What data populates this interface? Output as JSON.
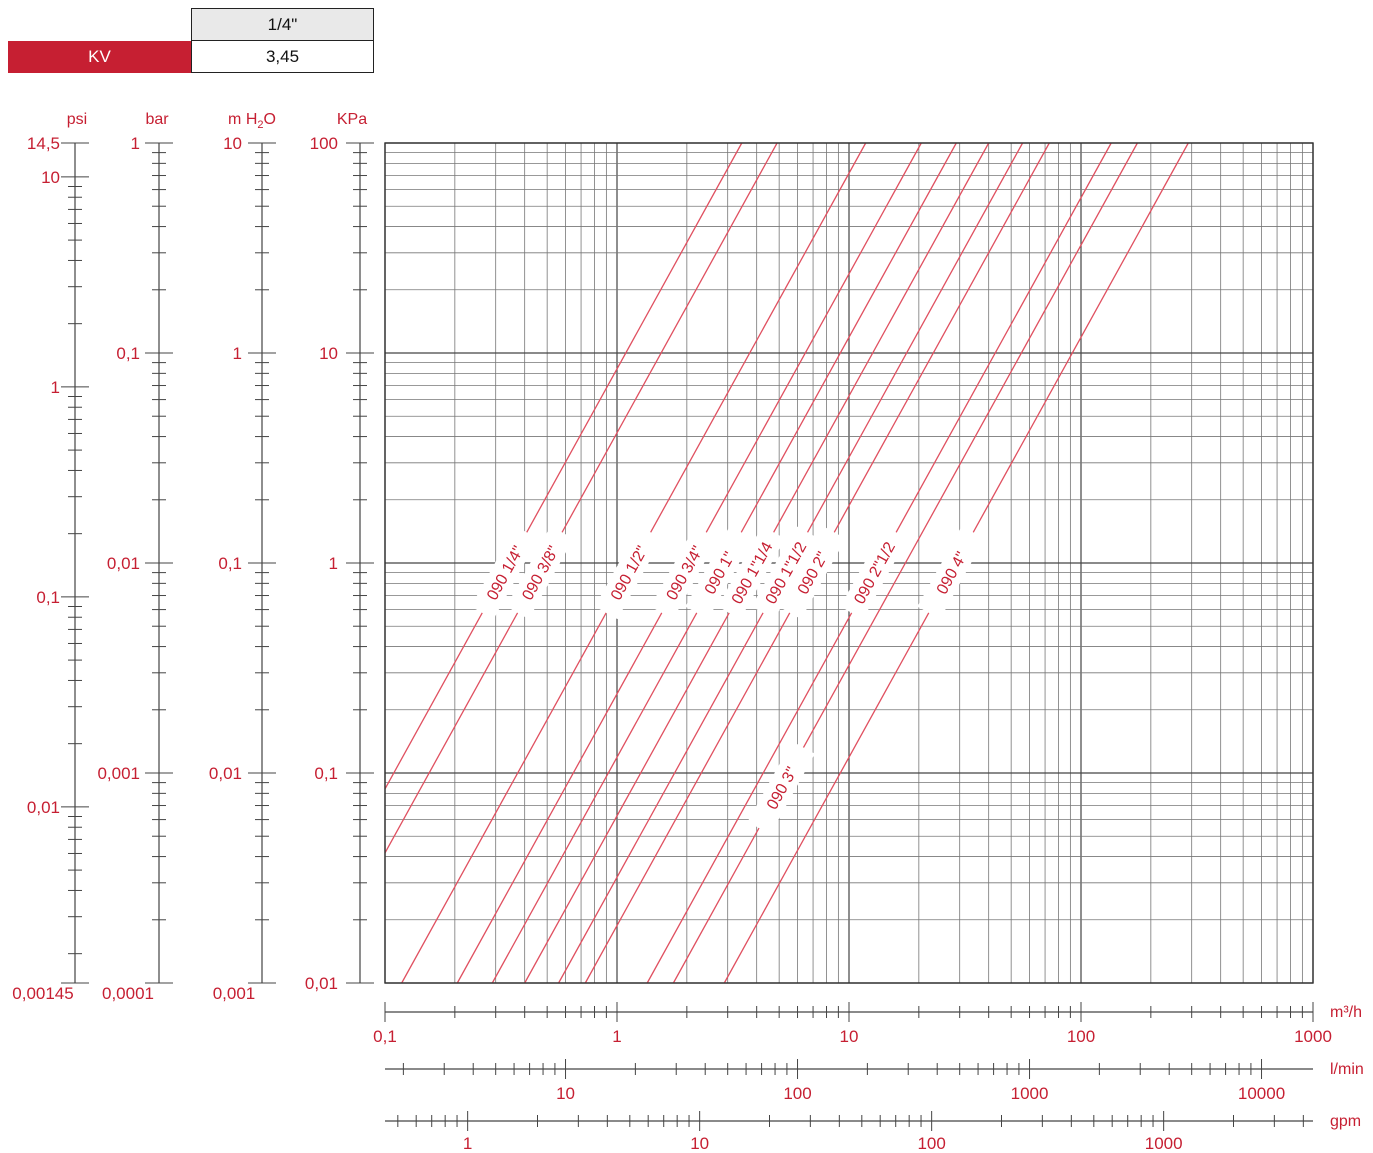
{
  "table": {
    "size": "1/4\"",
    "kv_label": "KV",
    "kv_value": "3,45"
  },
  "colors": {
    "accent": "#c61f32",
    "grid": "#555555",
    "curve": "#e05060"
  },
  "chart_data": {
    "type": "line",
    "scale": "log-log",
    "x_axis": {
      "unit": "m³/h",
      "range": [
        0.1,
        1000
      ],
      "tick_labels": [
        "0,1",
        "1",
        "10",
        "100",
        "1000"
      ]
    },
    "y_axis": {
      "unit": "KPa",
      "range": [
        0.01,
        100
      ],
      "tick_labels": [
        "100",
        "10",
        "1",
        "0,1",
        "0,01"
      ]
    },
    "secondary_x_axes": [
      {
        "unit": "l/min",
        "range_tick_labels": [
          "10",
          "100",
          "1000",
          "10000"
        ]
      },
      {
        "unit": "gpm",
        "range_tick_labels": [
          "1",
          "10",
          "100",
          "1000"
        ]
      }
    ],
    "side_scales": [
      {
        "unit": "psi",
        "tick_labels": [
          "14,5",
          "10",
          "1",
          "0,1",
          "0,01",
          "0,00145"
        ]
      },
      {
        "unit": "bar",
        "tick_labels": [
          "1",
          "0,1",
          "0,01",
          "0,001",
          "0,0001"
        ]
      },
      {
        "unit": "m H2O",
        "tick_labels": [
          "10",
          "1",
          "0,1",
          "0,01",
          "0,001"
        ]
      }
    ],
    "series": [
      {
        "name": "090 1/4\"",
        "kv": 3.45
      },
      {
        "name": "090 3/8\"",
        "kv": 4.9
      },
      {
        "name": "090 1/2\"",
        "kv": 11.8
      },
      {
        "name": "090 3/4\"",
        "kv": 20.5
      },
      {
        "name": "090 1\"",
        "kv": 29
      },
      {
        "name": "090 1\"1/4",
        "kv": 40
      },
      {
        "name": "090 1\"1/2",
        "kv": 56
      },
      {
        "name": "090 2\"",
        "kv": 73
      },
      {
        "name": "090 2\"1/2",
        "kv": 135
      },
      {
        "name": "090 3\"",
        "kv": 175
      },
      {
        "name": "090 4\"",
        "kv": 290
      }
    ]
  }
}
